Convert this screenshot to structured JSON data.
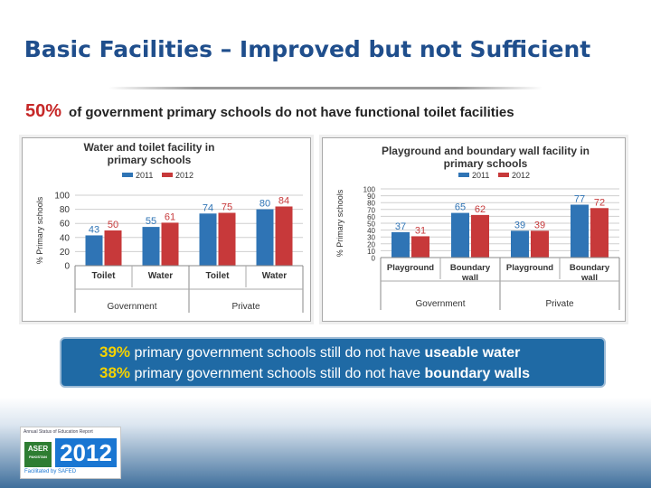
{
  "slide": {
    "title": "Basic Facilities – Improved but not Sufficient",
    "headline_pct": "50%",
    "headline_text": "of government primary schools do not have functional toilet facilities",
    "callout": [
      {
        "pct": "39%",
        "text": "primary government schools still do not have",
        "key": "useable water"
      },
      {
        "pct": "38%",
        "text": "primary government schools still do not have",
        "key": "boundary walls"
      }
    ],
    "logo": {
      "top_text": "Annual Status of Education Report",
      "aser": "ASER",
      "aser_sub": "PAKISTAN",
      "year": "2012",
      "facilitated": "Facilitated by SAFED"
    }
  },
  "colors": {
    "s2011": "#2f74b5",
    "s2012": "#c7393a",
    "title": "#1f4e8c",
    "callout_bg": "#1f6aa5",
    "highlight": "#f5d200"
  },
  "chart_data": [
    {
      "type": "bar",
      "title": "Water and toilet facility in primary schools",
      "ylabel": "% Primary schools",
      "ylim": [
        0,
        100
      ],
      "yticks": [
        "100",
        "80",
        "60",
        "40",
        "20",
        "0"
      ],
      "categories": [
        "Toilet",
        "Water",
        "Toilet",
        "Water"
      ],
      "groups": [
        "Government",
        "Private"
      ],
      "series": [
        {
          "name": "2011",
          "values": [
            43,
            55,
            74,
            80
          ]
        },
        {
          "name": "2012",
          "values": [
            50,
            61,
            75,
            84
          ]
        }
      ],
      "legend": "top"
    },
    {
      "type": "bar",
      "title": "Playground and boundary wall facility in primary schools",
      "ylabel": "% Primary schools",
      "ylim": [
        0,
        100
      ],
      "yticks": [
        "100",
        "90",
        "80",
        "70",
        "60",
        "50",
        "40",
        "30",
        "20",
        "10",
        "0"
      ],
      "categories": [
        "Playground",
        "Boundary wall",
        "Playground",
        "Boundary wall"
      ],
      "groups": [
        "Government",
        "Private"
      ],
      "series": [
        {
          "name": "2011",
          "values": [
            37,
            65,
            39,
            77
          ]
        },
        {
          "name": "2012",
          "values": [
            31,
            62,
            39,
            72
          ]
        }
      ],
      "legend": "top"
    }
  ]
}
